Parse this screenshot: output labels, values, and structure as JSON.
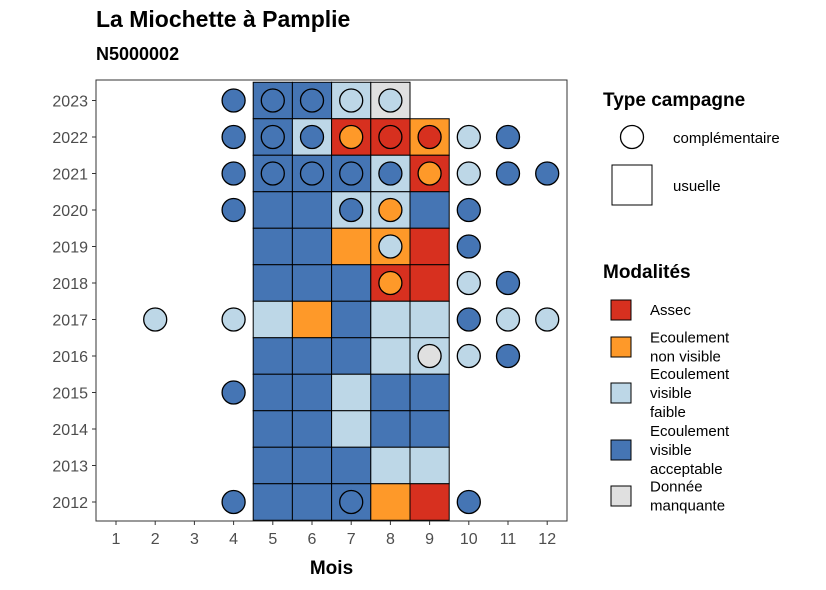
{
  "title": "La Miochette à Pamplie",
  "subtitle": "N5000002",
  "chart_data": {
    "type": "heatmap",
    "title": "La Miochette à Pamplie",
    "subtitle": "N5000002",
    "xlabel": "Mois",
    "ylabel": "",
    "x_ticks": [
      "1",
      "2",
      "3",
      "4",
      "5",
      "6",
      "7",
      "8",
      "9",
      "10",
      "11",
      "12"
    ],
    "y_ticks": [
      "2012",
      "2013",
      "2014",
      "2015",
      "2016",
      "2017",
      "2018",
      "2019",
      "2020",
      "2021",
      "2022",
      "2023"
    ],
    "colors": {
      "Assec": "#d7301f",
      "Ecoulement non visible": "#fe9929",
      "Ecoulement visible faible": "#bdd7e7",
      "Ecoulement visible acceptable": "#4575b4",
      "Donnée manquante": "#e0e0e0"
    },
    "legend_type_title": "Type campagne",
    "legend_type": [
      "complémentaire",
      "usuelle"
    ],
    "legend_mod_title": "Modalités",
    "legend_mod": [
      {
        "key": "Assec",
        "lines": [
          "Assec"
        ]
      },
      {
        "key": "Ecoulement non visible",
        "lines": [
          "Ecoulement",
          "non visible"
        ]
      },
      {
        "key": "Ecoulement visible faible",
        "lines": [
          "Ecoulement",
          "visible",
          "faible"
        ]
      },
      {
        "key": "Ecoulement visible acceptable",
        "lines": [
          "Ecoulement",
          "visible",
          "acceptable"
        ]
      },
      {
        "key": "Donnée manquante",
        "lines": [
          "Donnée",
          "manquante"
        ]
      }
    ],
    "usuelle": [
      {
        "year": 2023,
        "month": 5,
        "m": "Ecoulement visible acceptable"
      },
      {
        "year": 2023,
        "month": 6,
        "m": "Ecoulement visible acceptable"
      },
      {
        "year": 2023,
        "month": 7,
        "m": "Ecoulement visible faible"
      },
      {
        "year": 2023,
        "month": 8,
        "m": "Donnée manquante"
      },
      {
        "year": 2022,
        "month": 5,
        "m": "Ecoulement visible acceptable"
      },
      {
        "year": 2022,
        "month": 6,
        "m": "Ecoulement visible faible"
      },
      {
        "year": 2022,
        "month": 7,
        "m": "Assec"
      },
      {
        "year": 2022,
        "month": 8,
        "m": "Assec"
      },
      {
        "year": 2022,
        "month": 9,
        "m": "Ecoulement non visible"
      },
      {
        "year": 2021,
        "month": 5,
        "m": "Ecoulement visible acceptable"
      },
      {
        "year": 2021,
        "month": 6,
        "m": "Ecoulement visible acceptable"
      },
      {
        "year": 2021,
        "month": 7,
        "m": "Ecoulement visible acceptable"
      },
      {
        "year": 2021,
        "month": 8,
        "m": "Ecoulement visible faible"
      },
      {
        "year": 2021,
        "month": 9,
        "m": "Assec"
      },
      {
        "year": 2020,
        "month": 5,
        "m": "Ecoulement visible acceptable"
      },
      {
        "year": 2020,
        "month": 6,
        "m": "Ecoulement visible acceptable"
      },
      {
        "year": 2020,
        "month": 7,
        "m": "Ecoulement visible faible"
      },
      {
        "year": 2020,
        "month": 8,
        "m": "Ecoulement visible faible"
      },
      {
        "year": 2020,
        "month": 9,
        "m": "Ecoulement visible acceptable"
      },
      {
        "year": 2019,
        "month": 5,
        "m": "Ecoulement visible acceptable"
      },
      {
        "year": 2019,
        "month": 6,
        "m": "Ecoulement visible acceptable"
      },
      {
        "year": 2019,
        "month": 7,
        "m": "Ecoulement non visible"
      },
      {
        "year": 2019,
        "month": 8,
        "m": "Ecoulement non visible"
      },
      {
        "year": 2019,
        "month": 9,
        "m": "Assec"
      },
      {
        "year": 2018,
        "month": 5,
        "m": "Ecoulement visible acceptable"
      },
      {
        "year": 2018,
        "month": 6,
        "m": "Ecoulement visible acceptable"
      },
      {
        "year": 2018,
        "month": 7,
        "m": "Ecoulement visible acceptable"
      },
      {
        "year": 2018,
        "month": 8,
        "m": "Assec"
      },
      {
        "year": 2018,
        "month": 9,
        "m": "Assec"
      },
      {
        "year": 2017,
        "month": 5,
        "m": "Ecoulement visible faible"
      },
      {
        "year": 2017,
        "month": 6,
        "m": "Ecoulement non visible"
      },
      {
        "year": 2017,
        "month": 7,
        "m": "Ecoulement visible acceptable"
      },
      {
        "year": 2017,
        "month": 8,
        "m": "Ecoulement visible faible"
      },
      {
        "year": 2017,
        "month": 9,
        "m": "Ecoulement visible faible"
      },
      {
        "year": 2016,
        "month": 5,
        "m": "Ecoulement visible acceptable"
      },
      {
        "year": 2016,
        "month": 6,
        "m": "Ecoulement visible acceptable"
      },
      {
        "year": 2016,
        "month": 7,
        "m": "Ecoulement visible acceptable"
      },
      {
        "year": 2016,
        "month": 8,
        "m": "Ecoulement visible faible"
      },
      {
        "year": 2016,
        "month": 9,
        "m": "Ecoulement visible faible"
      },
      {
        "year": 2015,
        "month": 5,
        "m": "Ecoulement visible acceptable"
      },
      {
        "year": 2015,
        "month": 6,
        "m": "Ecoulement visible acceptable"
      },
      {
        "year": 2015,
        "month": 7,
        "m": "Ecoulement visible faible"
      },
      {
        "year": 2015,
        "month": 8,
        "m": "Ecoulement visible acceptable"
      },
      {
        "year": 2015,
        "month": 9,
        "m": "Ecoulement visible acceptable"
      },
      {
        "year": 2014,
        "month": 5,
        "m": "Ecoulement visible acceptable"
      },
      {
        "year": 2014,
        "month": 6,
        "m": "Ecoulement visible acceptable"
      },
      {
        "year": 2014,
        "month": 7,
        "m": "Ecoulement visible faible"
      },
      {
        "year": 2014,
        "month": 8,
        "m": "Ecoulement visible acceptable"
      },
      {
        "year": 2014,
        "month": 9,
        "m": "Ecoulement visible acceptable"
      },
      {
        "year": 2013,
        "month": 5,
        "m": "Ecoulement visible acceptable"
      },
      {
        "year": 2013,
        "month": 6,
        "m": "Ecoulement visible acceptable"
      },
      {
        "year": 2013,
        "month": 7,
        "m": "Ecoulement visible acceptable"
      },
      {
        "year": 2013,
        "month": 8,
        "m": "Ecoulement visible faible"
      },
      {
        "year": 2013,
        "month": 9,
        "m": "Ecoulement visible faible"
      },
      {
        "year": 2012,
        "month": 5,
        "m": "Ecoulement visible acceptable"
      },
      {
        "year": 2012,
        "month": 6,
        "m": "Ecoulement visible acceptable"
      },
      {
        "year": 2012,
        "month": 7,
        "m": "Ecoulement visible acceptable"
      },
      {
        "year": 2012,
        "month": 8,
        "m": "Ecoulement non visible"
      },
      {
        "year": 2012,
        "month": 9,
        "m": "Assec"
      }
    ],
    "complementaire": [
      {
        "year": 2023,
        "month": 4,
        "m": "Ecoulement visible acceptable"
      },
      {
        "year": 2023,
        "month": 5,
        "m": "Ecoulement visible acceptable"
      },
      {
        "year": 2023,
        "month": 6,
        "m": "Ecoulement visible acceptable"
      },
      {
        "year": 2023,
        "month": 7,
        "m": "Ecoulement visible faible"
      },
      {
        "year": 2023,
        "month": 8,
        "m": "Ecoulement visible faible"
      },
      {
        "year": 2022,
        "month": 4,
        "m": "Ecoulement visible acceptable"
      },
      {
        "year": 2022,
        "month": 5,
        "m": "Ecoulement visible acceptable"
      },
      {
        "year": 2022,
        "month": 6,
        "m": "Ecoulement visible acceptable"
      },
      {
        "year": 2022,
        "month": 7,
        "m": "Ecoulement non visible"
      },
      {
        "year": 2022,
        "month": 8,
        "m": "Assec"
      },
      {
        "year": 2022,
        "month": 9,
        "m": "Assec"
      },
      {
        "year": 2022,
        "month": 10,
        "m": "Ecoulement visible faible"
      },
      {
        "year": 2022,
        "month": 11,
        "m": "Ecoulement visible acceptable"
      },
      {
        "year": 2021,
        "month": 4,
        "m": "Ecoulement visible acceptable"
      },
      {
        "year": 2021,
        "month": 5,
        "m": "Ecoulement visible acceptable"
      },
      {
        "year": 2021,
        "month": 6,
        "m": "Ecoulement visible acceptable"
      },
      {
        "year": 2021,
        "month": 7,
        "m": "Ecoulement visible acceptable"
      },
      {
        "year": 2021,
        "month": 8,
        "m": "Ecoulement visible acceptable"
      },
      {
        "year": 2021,
        "month": 9,
        "m": "Ecoulement non visible"
      },
      {
        "year": 2021,
        "month": 10,
        "m": "Ecoulement visible faible"
      },
      {
        "year": 2021,
        "month": 11,
        "m": "Ecoulement visible acceptable"
      },
      {
        "year": 2021,
        "month": 12,
        "m": "Ecoulement visible acceptable"
      },
      {
        "year": 2020,
        "month": 4,
        "m": "Ecoulement visible acceptable"
      },
      {
        "year": 2020,
        "month": 7,
        "m": "Ecoulement visible acceptable"
      },
      {
        "year": 2020,
        "month": 8,
        "m": "Ecoulement non visible"
      },
      {
        "year": 2020,
        "month": 10,
        "m": "Ecoulement visible acceptable"
      },
      {
        "year": 2019,
        "month": 8,
        "m": "Ecoulement visible faible"
      },
      {
        "year": 2019,
        "month": 10,
        "m": "Ecoulement visible acceptable"
      },
      {
        "year": 2018,
        "month": 8,
        "m": "Ecoulement non visible"
      },
      {
        "year": 2018,
        "month": 10,
        "m": "Ecoulement visible faible"
      },
      {
        "year": 2018,
        "month": 11,
        "m": "Ecoulement visible acceptable"
      },
      {
        "year": 2017,
        "month": 2,
        "m": "Ecoulement visible faible"
      },
      {
        "year": 2017,
        "month": 4,
        "m": "Ecoulement visible faible"
      },
      {
        "year": 2017,
        "month": 10,
        "m": "Ecoulement visible acceptable"
      },
      {
        "year": 2017,
        "month": 11,
        "m": "Ecoulement visible faible"
      },
      {
        "year": 2017,
        "month": 12,
        "m": "Ecoulement visible faible"
      },
      {
        "year": 2016,
        "month": 9,
        "m": "Donnée manquante"
      },
      {
        "year": 2016,
        "month": 10,
        "m": "Ecoulement visible faible"
      },
      {
        "year": 2016,
        "month": 11,
        "m": "Ecoulement visible acceptable"
      },
      {
        "year": 2015,
        "month": 4,
        "m": "Ecoulement visible acceptable"
      },
      {
        "year": 2012,
        "month": 4,
        "m": "Ecoulement visible acceptable"
      },
      {
        "year": 2012,
        "month": 7,
        "m": "Ecoulement visible acceptable"
      },
      {
        "year": 2012,
        "month": 10,
        "m": "Ecoulement visible acceptable"
      }
    ]
  }
}
